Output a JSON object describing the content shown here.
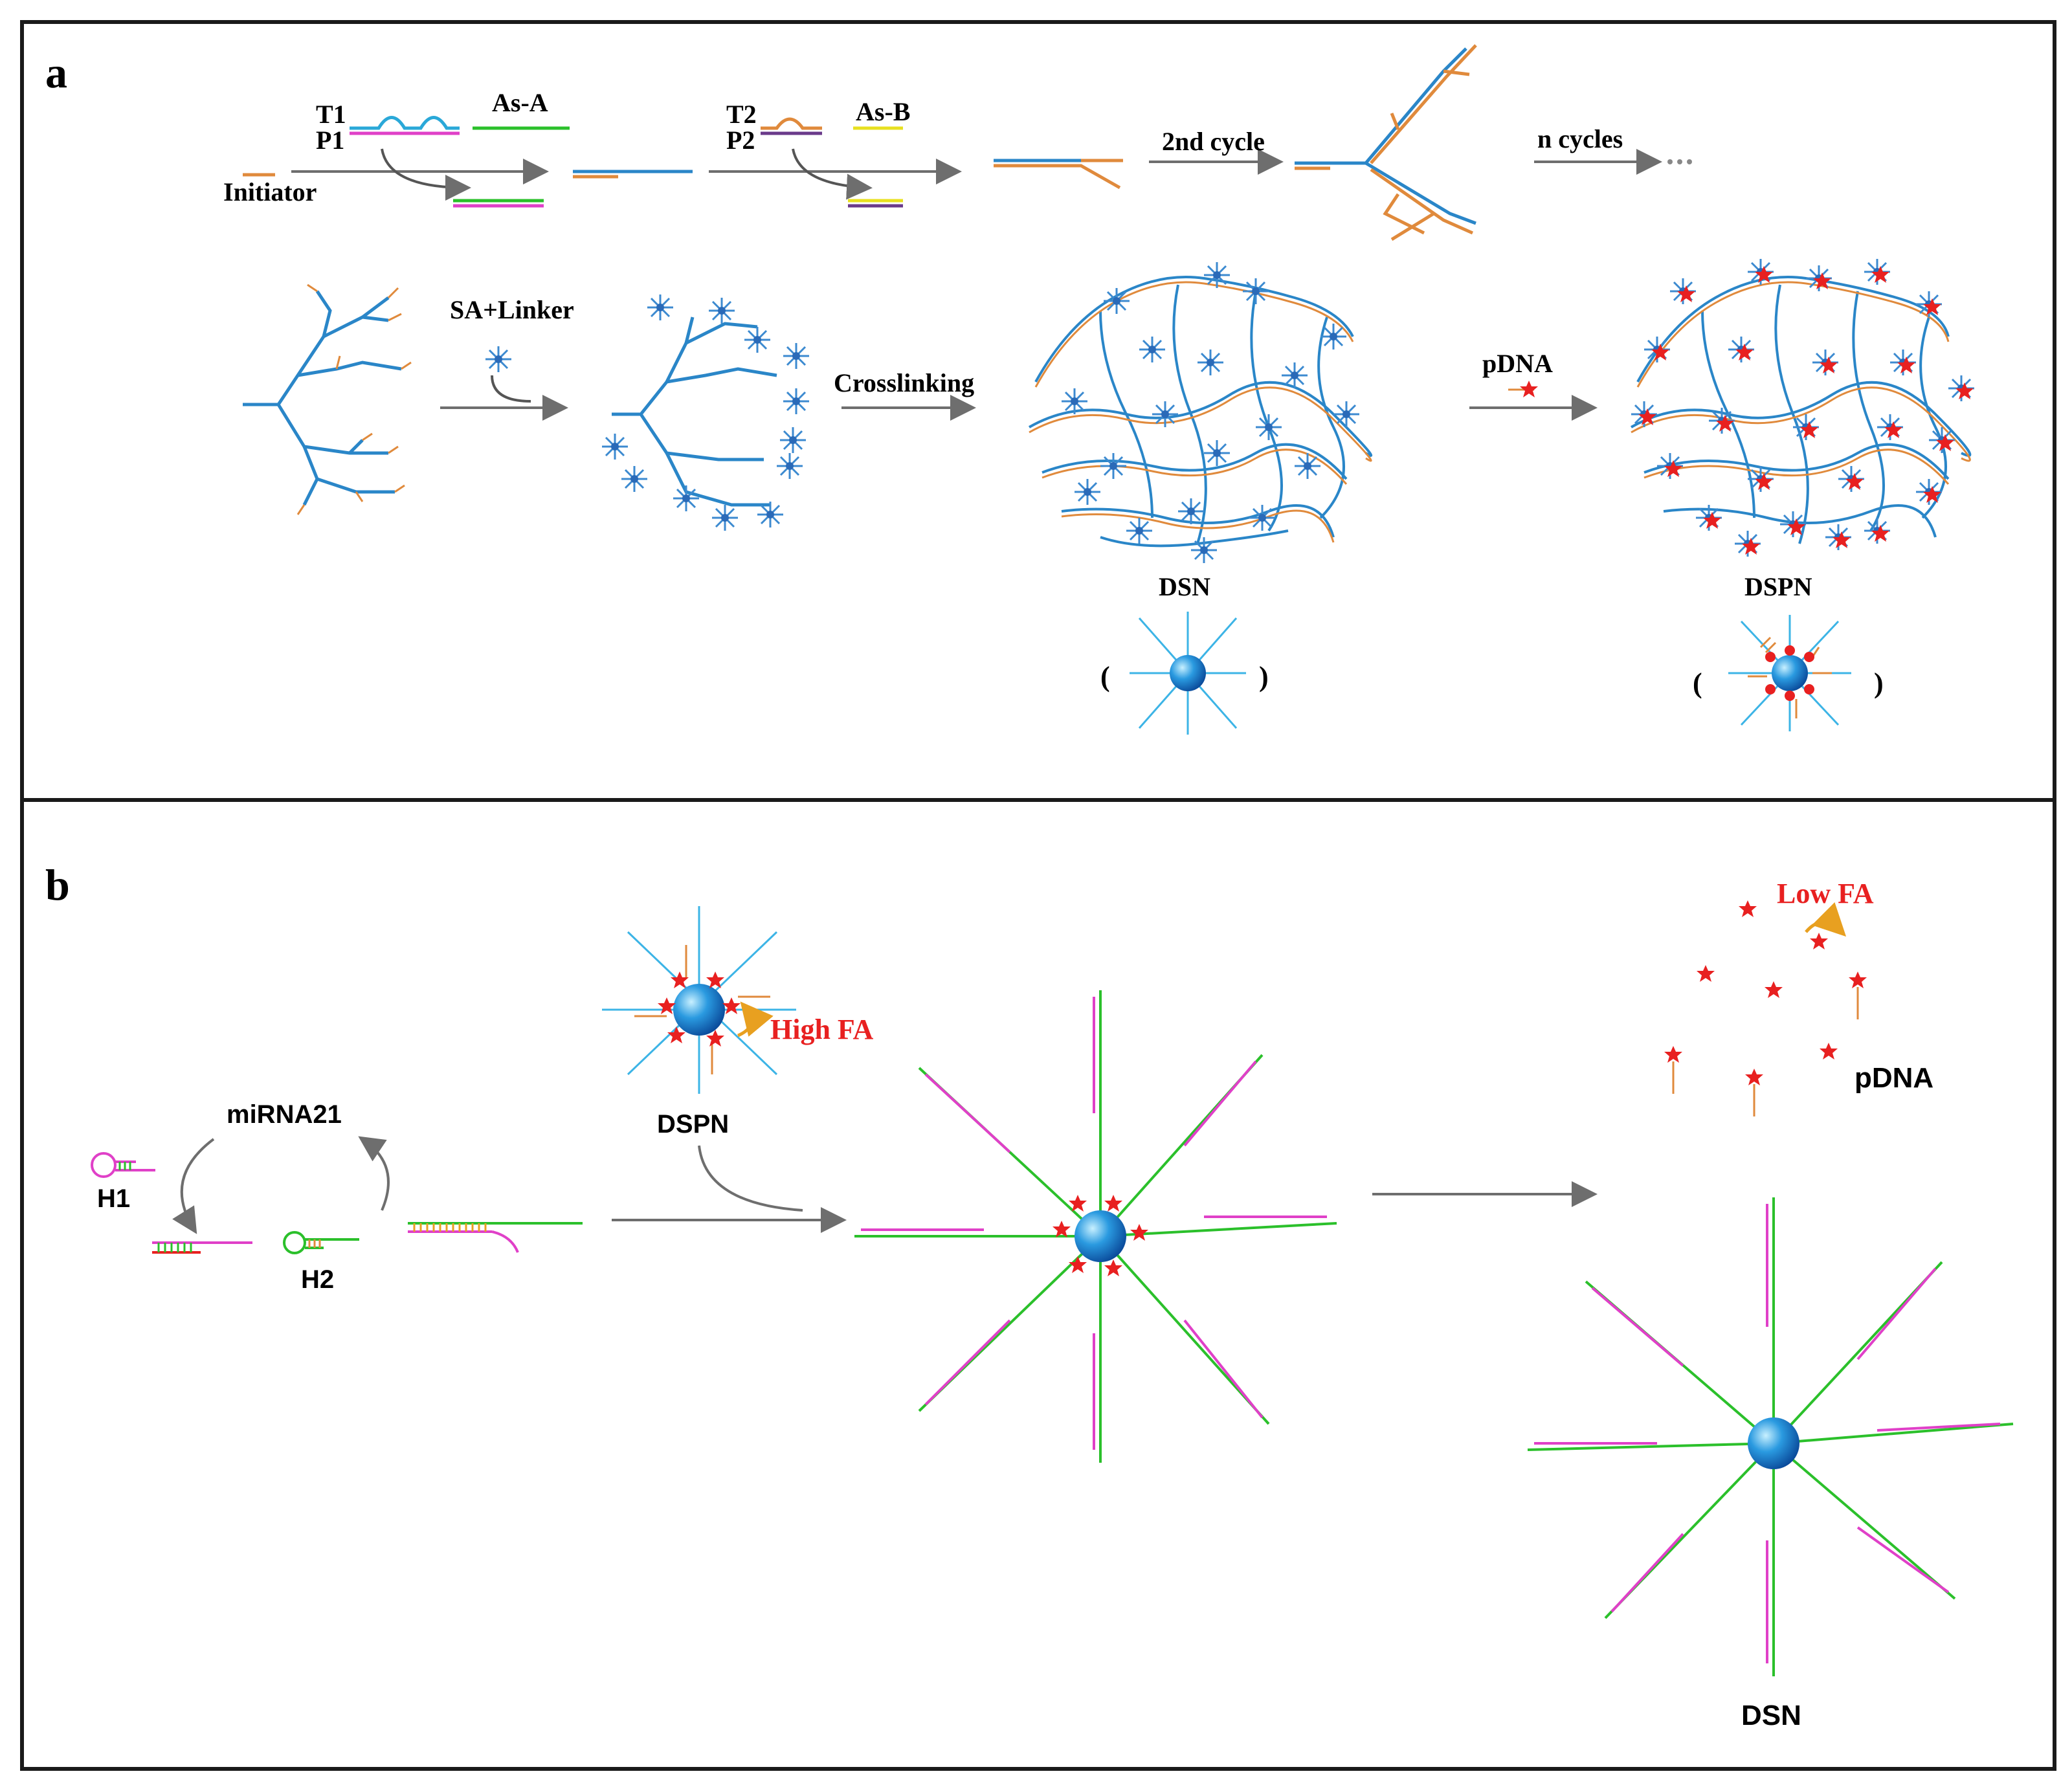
{
  "figure": {
    "panel_a": {
      "label": "a",
      "t1": "T1",
      "p1": "P1",
      "as_a": "As-A",
      "t2": "T2",
      "p2": "P2",
      "as_b": "As-B",
      "initiator": "Initiator",
      "second_cycle": "2nd cycle",
      "n_cycles": "n cycles",
      "sa_linker": "SA+Linker",
      "crosslinking": "Crosslinking",
      "pdna": "pDNA",
      "dsn": "DSN",
      "dspn": "DSPN",
      "open_paren": "(",
      "close_paren": ")"
    },
    "panel_b": {
      "label": "b",
      "mirna": "miRNA21",
      "h1": "H1",
      "h2": "H2",
      "dspn": "DSPN",
      "high_fa": "High FA",
      "low_fa": "Low FA",
      "pdna": "pDNA",
      "dsn": "DSN"
    },
    "colors": {
      "frame": "#1a1a1a",
      "arrow": "#6e6e6e",
      "strand_blue": "#2a86c8",
      "strand_orange": "#e08a3c",
      "magenta": "#e040c8",
      "green": "#2bc02b",
      "yellow": "#e8e020",
      "purple": "#6a3a8a",
      "cyan": "#3cb4e6",
      "star_red": "#e82020",
      "label_red": "#e82020",
      "sphere": "#1a8ad8"
    }
  }
}
